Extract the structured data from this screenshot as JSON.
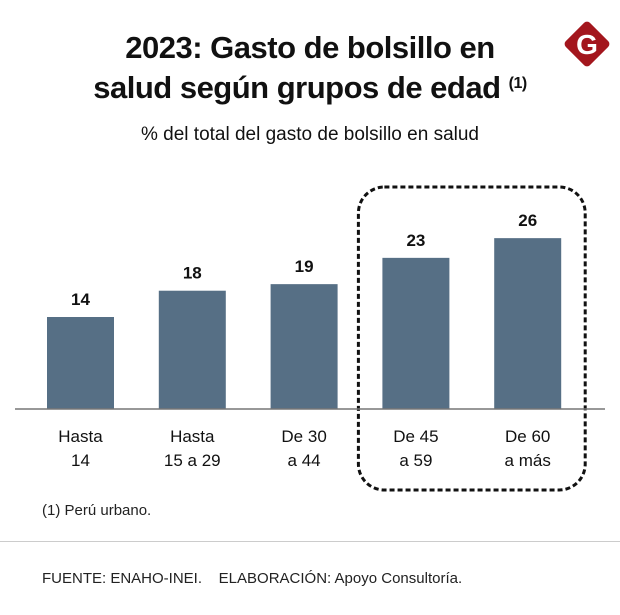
{
  "title_line1": "2023: Gasto de bolsillo en",
  "title_line2": "salud según grupos de edad",
  "title_note": "(1)",
  "logo_letter": "G",
  "footnote": "(1) Perú urbano.",
  "source": "FUENTE: ENAHO-INEI.    ELABORACIÓN: Apoyo Consultoría.",
  "colors": {
    "bar": "#566f85",
    "logo": "#a3161d",
    "axis": "#777777"
  },
  "chart_data": {
    "type": "bar",
    "title": "2023: Gasto de bolsillo en salud según grupos de edad (1)",
    "subtitle": "% del total del gasto de bolsillo en salud",
    "categories": [
      [
        "Hasta",
        "14"
      ],
      [
        "Hasta",
        "15 a 29"
      ],
      [
        "De 30",
        "a 44"
      ],
      [
        "De 45",
        "a 59"
      ],
      [
        "De 60",
        "a más"
      ]
    ],
    "values": [
      14,
      18,
      19,
      23,
      26
    ],
    "ylim": [
      0,
      26
    ],
    "grid": false,
    "highlighted_categories": [
      3,
      4
    ]
  }
}
